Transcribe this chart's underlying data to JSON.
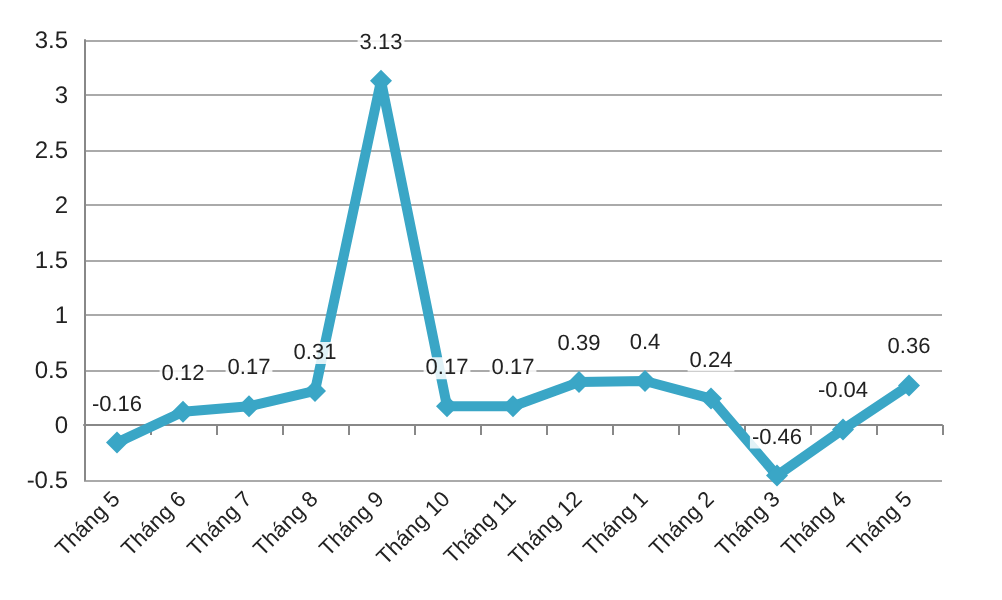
{
  "chart_data": {
    "type": "line",
    "categories": [
      "Tháng 5",
      "Tháng 6",
      "Tháng 7",
      "Tháng 8",
      "Tháng 9",
      "Tháng 10",
      "Tháng 11",
      "Tháng 12",
      "Tháng 1",
      "Tháng 2",
      "Tháng 3",
      "Tháng 4",
      "Tháng 5"
    ],
    "series": [
      {
        "color": "#3aa6c6",
        "values": [
          -0.16,
          0.12,
          0.17,
          0.31,
          3.13,
          0.17,
          0.17,
          0.39,
          0.4,
          0.24,
          -0.46,
          -0.04,
          0.36
        ]
      }
    ],
    "ylim": [
      -0.5,
      3.5
    ],
    "yticks": [
      -0.5,
      0,
      0.5,
      1,
      1.5,
      2,
      2.5,
      3,
      3.5
    ],
    "grid": "y",
    "marker": "diamond",
    "line_style": "solid",
    "data_labels": true
  }
}
